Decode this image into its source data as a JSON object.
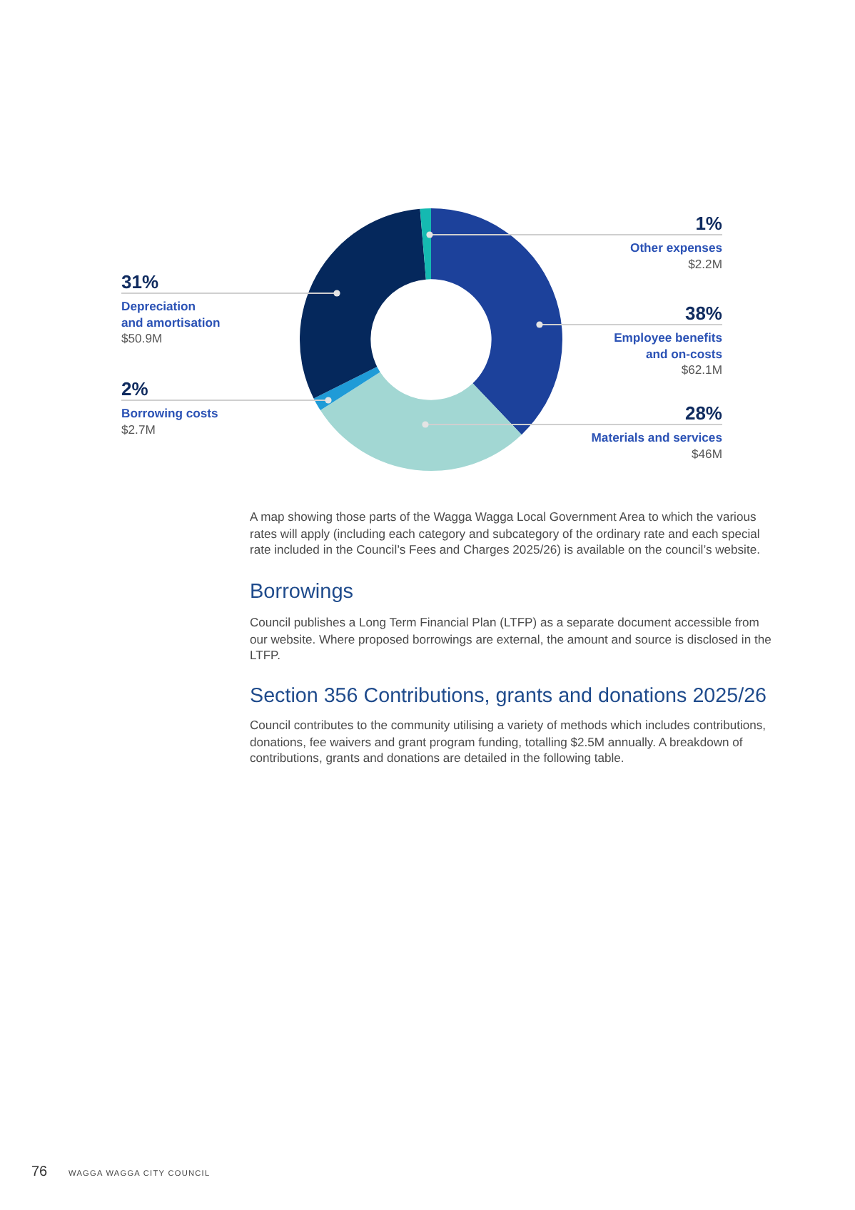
{
  "chart_data": {
    "type": "donut",
    "categories": [
      "Employee benefits and on-costs",
      "Materials and services",
      "Borrowing costs",
      "Depreciation and amortisation",
      "Other expenses"
    ],
    "values": [
      62.1,
      46,
      2.7,
      50.9,
      2.2
    ],
    "colors": [
      "#1c419b",
      "#a2d7d3",
      "#1f9bd7",
      "#05285c",
      "#15b9b1"
    ],
    "value_labels": [
      "$62.1M",
      "$46M",
      "$2.7M",
      "$50.9M",
      "$2.2M"
    ],
    "annotations": [
      {
        "text": "38%",
        "x": "Employee benefits and on-costs"
      },
      {
        "text": "28%",
        "x": "Materials and services"
      },
      {
        "text": "2%",
        "x": "Borrowing costs"
      },
      {
        "text": "31%",
        "x": "Depreciation and amortisation"
      },
      {
        "text": "1%",
        "x": "Other expenses"
      },
      "A map showing those parts of the Wagga Wagga Local Government Area to which the various rates will apply (including each category and subcategory of the ordinary rate and each special rate included in the Council’s Fees and Charges 2025/26) is available on the council’s website.",
      "Borrowings",
      "Council publishes a Long Term Financial Plan (LTFP) as a separate document accessible from our website. Where proposed borrowings are external, the amount and source is disclosed in the LTFP.",
      "Section 356 Contributions, grants and donations 2025/26",
      "Council contributes to the community utilising a variety of methods which includes contributions, donations, fee waivers and grant program funding, totalling $2.5M annually. A breakdown of contributions, grants and donations are detailed in the following table.",
      "76",
      "WAGGA WAGGA CITY COUNCIL"
    ]
  }
}
